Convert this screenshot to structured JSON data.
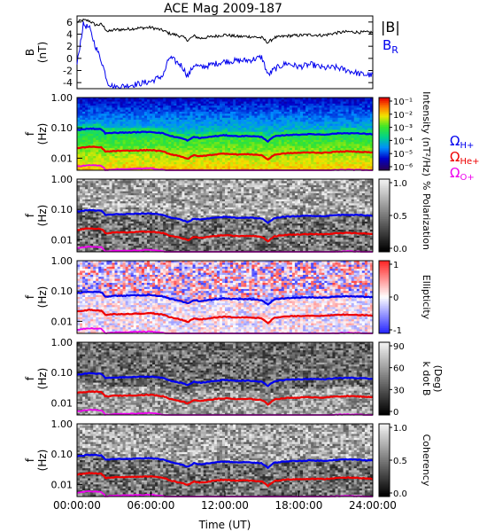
{
  "title": "ACE Mag 2009-187",
  "xlabel": "Time (UT)",
  "xticks": [
    "00:00:00",
    "06:00:00",
    "12:00:00",
    "18:00:00",
    "24:00:00"
  ],
  "chart_data": [
    {
      "type": "line",
      "panel": "magnetic-field",
      "ylabel": "B",
      "yunit": "(nT)",
      "ylim": [
        -5,
        7
      ],
      "yticks": [
        "6",
        "4",
        "2",
        "0",
        "-2",
        "-4"
      ],
      "legend_placement": "right",
      "x_hours": [
        0,
        0.5,
        1,
        1.5,
        2,
        2.5,
        3,
        4,
        5,
        6,
        7,
        7.5,
        8,
        8.5,
        9,
        9.5,
        10,
        11,
        12,
        13,
        14,
        15,
        15.5,
        16,
        17,
        18,
        19,
        20,
        21,
        22,
        23,
        24
      ],
      "series": [
        {
          "name": "|B|",
          "color": "#000000",
          "values": [
            6.0,
            6.3,
            6.2,
            5.5,
            5.6,
            4.4,
            4.7,
            4.8,
            5.0,
            5.1,
            4.6,
            4.1,
            3.9,
            3.6,
            3.0,
            3.7,
            3.3,
            3.6,
            3.9,
            3.6,
            3.6,
            3.4,
            2.6,
            3.4,
            3.7,
            3.8,
            3.9,
            3.8,
            4.2,
            4.4,
            4.3,
            4.3
          ]
        },
        {
          "name": "B_R",
          "label_main": "B",
          "label_sub": "R",
          "color": "#0000ee",
          "values": [
            -1.0,
            5.6,
            5.0,
            2.0,
            -0.5,
            -4.0,
            -4.8,
            -4.5,
            -4.2,
            -3.8,
            -2.8,
            0.2,
            -0.5,
            -1.2,
            -3.0,
            -1.0,
            -1.5,
            -1.0,
            -0.5,
            -0.4,
            -0.3,
            0.2,
            -2.8,
            -1.8,
            -0.8,
            -1.4,
            -1.0,
            -1.6,
            -1.5,
            -2.0,
            -2.6,
            -2.8
          ]
        }
      ]
    },
    {
      "type": "heatmap",
      "panel": "intensity",
      "ylabel": "f",
      "yunit": "(Hz)",
      "yscale": "log",
      "ylim": [
        0.004,
        1.0
      ],
      "yticks": [
        "1.00",
        "0.10",
        "0.01"
      ],
      "colorbar": {
        "label": "Intensity (nT²/Hz)",
        "scale": "log",
        "ticks": [
          "10⁻¹",
          "10⁻²",
          "10⁻³",
          "10⁻⁴",
          "10⁻⁵",
          "10⁻⁶"
        ],
        "colormap": "rainbow"
      },
      "overlay_legend": [
        {
          "label_main": "Ω",
          "label_sub": "H+",
          "color": "#0000ee"
        },
        {
          "label_main": "Ω",
          "label_sub": "He+",
          "color": "#ee0000"
        },
        {
          "label_main": "Ω",
          "label_sub": "O+",
          "color": "#ee00ee"
        }
      ]
    },
    {
      "type": "heatmap",
      "panel": "polarization",
      "ylabel": "f",
      "yunit": "(Hz)",
      "yscale": "log",
      "ylim": [
        0.004,
        1.0
      ],
      "yticks": [
        "1.00",
        "0.10",
        "0.01"
      ],
      "colorbar": {
        "label": "% Polarization",
        "ticks": [
          "1.0",
          "0.5",
          "0.0"
        ],
        "colormap": "gray"
      }
    },
    {
      "type": "heatmap",
      "panel": "ellipticity",
      "ylabel": "f",
      "yunit": "(Hz)",
      "yscale": "log",
      "ylim": [
        0.004,
        1.0
      ],
      "yticks": [
        "1.00",
        "0.10",
        "0.01"
      ],
      "colorbar": {
        "label": "Ellipticity",
        "ticks": [
          "1",
          "0",
          "-1"
        ],
        "colormap": "blue-white-red"
      }
    },
    {
      "type": "heatmap",
      "panel": "k-dot-b",
      "ylabel": "f",
      "yunit": "(Hz)",
      "yscale": "log",
      "ylim": [
        0.004,
        1.0
      ],
      "yticks": [
        "1.00",
        "0.10",
        "0.01"
      ],
      "colorbar": {
        "label": "k dot B",
        "unit": "(Deg)",
        "ticks": [
          "90",
          "60",
          "30",
          "0"
        ],
        "colormap": "gray"
      }
    },
    {
      "type": "heatmap",
      "panel": "coherency",
      "ylabel": "f",
      "yunit": "(Hz)",
      "yscale": "log",
      "ylim": [
        0.004,
        1.0
      ],
      "yticks": [
        "1.00",
        "0.10",
        "0.01"
      ],
      "colorbar": {
        "label": "Coherency",
        "ticks": [
          "1.0",
          "0.5",
          "0.0"
        ],
        "colormap": "gray"
      }
    }
  ],
  "gyrofrequency_lines": {
    "x_hours": [
      0,
      1,
      2,
      2.3,
      3,
      4,
      5,
      6,
      7,
      7.5,
      8,
      8.5,
      9,
      9.5,
      10,
      11,
      12,
      13,
      14,
      15,
      15.5,
      16,
      17,
      18,
      19,
      20,
      21,
      22,
      23,
      24
    ],
    "f_H_hz": [
      0.085,
      0.095,
      0.09,
      0.065,
      0.069,
      0.07,
      0.072,
      0.074,
      0.066,
      0.055,
      0.05,
      0.045,
      0.038,
      0.05,
      0.046,
      0.052,
      0.057,
      0.053,
      0.054,
      0.05,
      0.035,
      0.052,
      0.058,
      0.06,
      0.062,
      0.06,
      0.065,
      0.067,
      0.065,
      0.062
    ],
    "colors": {
      "H": "#0000ee",
      "He": "#ee0000",
      "O": "#ee00ee"
    }
  }
}
